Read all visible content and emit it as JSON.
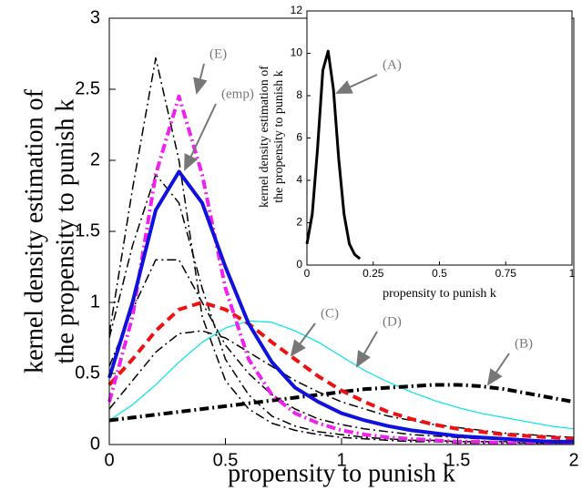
{
  "chart_data": [
    {
      "type": "line",
      "xlabel": "propensity to punish k",
      "ylabel": [
        "kernel density estimation of",
        "the propensity to punish k"
      ],
      "xlim": [
        0,
        2
      ],
      "ylim": [
        0,
        3
      ],
      "xticks": [
        0,
        0.5,
        1,
        1.5,
        2
      ],
      "yticks": [
        0,
        0.5,
        1,
        1.5,
        2,
        2.5,
        3
      ],
      "x": [
        0,
        0.1,
        0.2,
        0.3,
        0.4,
        0.5,
        0.6,
        0.7,
        0.8,
        0.9,
        1.0,
        1.1,
        1.2,
        1.3,
        1.4,
        1.5,
        1.6,
        1.7,
        1.8,
        1.9,
        2.0
      ],
      "series": [
        {
          "color": "#000000",
          "linestyle": "dashdot",
          "linewidth": 1.5,
          "values": [
            0.78,
            1.8,
            2.72,
            2.0,
            0.9,
            0.45,
            0.25,
            0.15,
            0.1,
            0.07,
            0.05,
            0.04,
            0.03,
            0.02,
            0.02,
            0.01,
            0.01,
            0.01,
            0.01,
            0.01,
            0.01
          ]
        },
        {
          "color": "#000000",
          "linestyle": "dashdot",
          "linewidth": 1.5,
          "values": [
            0.75,
            1.4,
            1.9,
            1.7,
            1.1,
            0.6,
            0.35,
            0.2,
            0.13,
            0.09,
            0.07,
            0.05,
            0.04,
            0.03,
            0.03,
            0.02,
            0.02,
            0.02,
            0.01,
            0.01,
            0.01
          ]
        },
        {
          "color": "#000000",
          "linestyle": "dashdot",
          "linewidth": 1.5,
          "values": [
            0.55,
            0.95,
            1.3,
            1.3,
            1.0,
            0.7,
            0.5,
            0.35,
            0.25,
            0.18,
            0.14,
            0.11,
            0.09,
            0.07,
            0.06,
            0.05,
            0.04,
            0.04,
            0.03,
            0.03,
            0.02
          ]
        },
        {
          "color": "#000000",
          "linestyle": "dashdot",
          "linewidth": 1.5,
          "values": [
            0.25,
            0.45,
            0.65,
            0.78,
            0.8,
            0.75,
            0.65,
            0.55,
            0.45,
            0.37,
            0.3,
            0.25,
            0.2,
            0.17,
            0.14,
            0.12,
            0.1,
            0.08,
            0.07,
            0.06,
            0.05
          ]
        },
        {
          "color": "#00e5e5",
          "linestyle": "solid",
          "linewidth": 1.2,
          "values": [
            0.17,
            0.28,
            0.42,
            0.58,
            0.72,
            0.82,
            0.87,
            0.86,
            0.8,
            0.72,
            0.62,
            0.52,
            0.44,
            0.37,
            0.31,
            0.26,
            0.22,
            0.19,
            0.16,
            0.13,
            0.11
          ]
        },
        {
          "color": "#000000",
          "linestyle": "dashdot",
          "linewidth": 4,
          "values": [
            0.17,
            0.19,
            0.21,
            0.23,
            0.25,
            0.27,
            0.29,
            0.31,
            0.33,
            0.35,
            0.37,
            0.39,
            0.4,
            0.41,
            0.42,
            0.42,
            0.41,
            0.39,
            0.36,
            0.33,
            0.3
          ]
        },
        {
          "color": "#ee1111",
          "linestyle": "dashed",
          "linewidth": 4,
          "values": [
            0.42,
            0.6,
            0.8,
            0.95,
            1.0,
            0.95,
            0.85,
            0.72,
            0.6,
            0.48,
            0.38,
            0.3,
            0.23,
            0.18,
            0.14,
            0.11,
            0.09,
            0.07,
            0.06,
            0.05,
            0.04
          ]
        },
        {
          "color": "#ee22ee",
          "linestyle": "dashdot",
          "linewidth": 4,
          "values": [
            0.3,
            0.9,
            1.9,
            2.45,
            1.9,
            1.1,
            0.6,
            0.35,
            0.22,
            0.15,
            0.1,
            0.07,
            0.05,
            0.04,
            0.03,
            0.02,
            0.02,
            0.01,
            0.01,
            0.01,
            0.01
          ]
        },
        {
          "color": "#1111dd",
          "linestyle": "solid",
          "linewidth": 4,
          "values": [
            0.47,
            1.0,
            1.65,
            1.92,
            1.7,
            1.25,
            0.85,
            0.58,
            0.4,
            0.3,
            0.22,
            0.17,
            0.13,
            0.1,
            0.08,
            0.06,
            0.05,
            0.04,
            0.03,
            0.02,
            0.02
          ]
        }
      ],
      "annotations": [
        "(E)",
        "(emp)",
        "(C)",
        "(D)",
        "(B)"
      ]
    },
    {
      "type": "line",
      "xlabel": "propensity to punish k",
      "ylabel": [
        "kernel density estimation of",
        "the propensity to punish k"
      ],
      "xlim": [
        0,
        1
      ],
      "ylim": [
        0,
        12
      ],
      "xticks": [
        0,
        0.25,
        0.5,
        0.75,
        1
      ],
      "yticks": [
        0,
        2,
        4,
        6,
        8,
        10,
        12
      ],
      "x": [
        0,
        0.02,
        0.04,
        0.06,
        0.08,
        0.1,
        0.12,
        0.14,
        0.16,
        0.18,
        0.2
      ],
      "series": [
        {
          "color": "#000000",
          "linestyle": "solid",
          "linewidth": 3,
          "values": [
            1.0,
            2.4,
            5.5,
            9.2,
            10.1,
            8.3,
            5.0,
            2.4,
            1.0,
            0.5,
            0.3
          ]
        }
      ],
      "annotations": [
        "(A)"
      ]
    }
  ]
}
